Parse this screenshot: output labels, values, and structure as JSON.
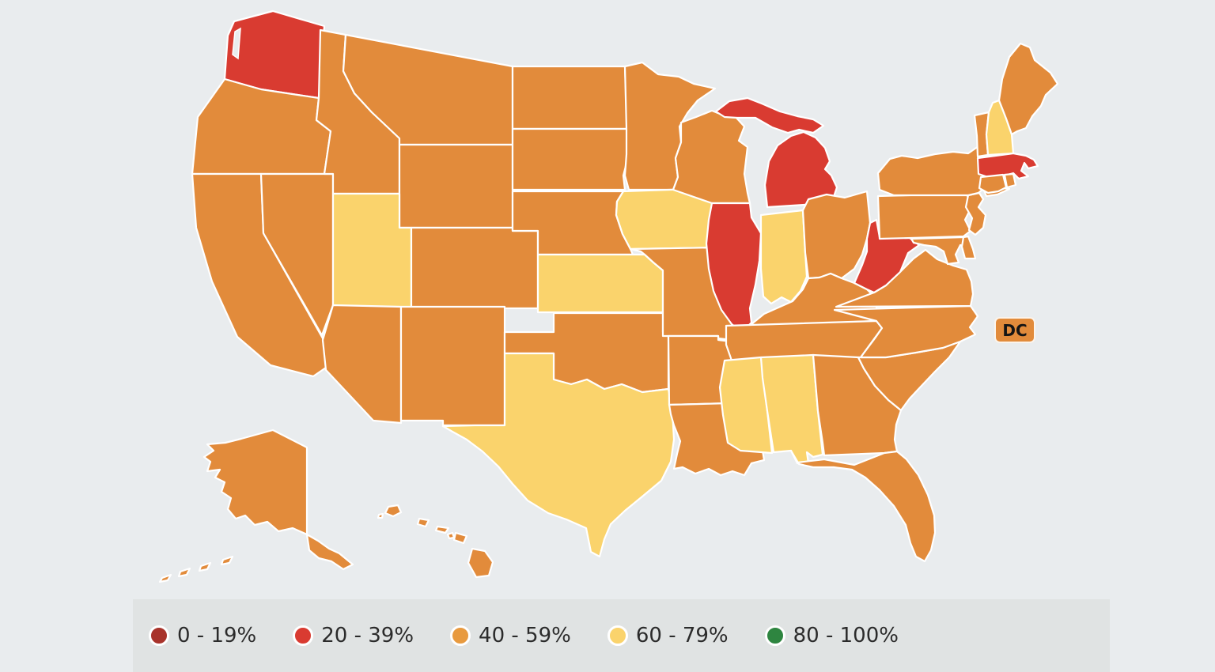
{
  "map": {
    "background_color": "#E9ECEE",
    "border_color": "#FFFFFF",
    "dc_label": "DC",
    "buckets": [
      {
        "label": "0 - 19%",
        "color": "#A8332B"
      },
      {
        "label": "20 - 39%",
        "color": "#D93B31"
      },
      {
        "label": "40 - 59%",
        "color": "#E28B3B"
      },
      {
        "label": "60 - 79%",
        "color": "#FAD36C"
      },
      {
        "label": "80 - 100%",
        "color": "#2E8540"
      }
    ],
    "states": [
      {
        "id": "WA",
        "name": "Washington",
        "bucket": "20 - 39%"
      },
      {
        "id": "OR",
        "name": "Oregon",
        "bucket": "40 - 59%"
      },
      {
        "id": "CA",
        "name": "California",
        "bucket": "40 - 59%"
      },
      {
        "id": "NV",
        "name": "Nevada",
        "bucket": "40 - 59%"
      },
      {
        "id": "ID",
        "name": "Idaho",
        "bucket": "40 - 59%"
      },
      {
        "id": "MT",
        "name": "Montana",
        "bucket": "40 - 59%"
      },
      {
        "id": "WY",
        "name": "Wyoming",
        "bucket": "40 - 59%"
      },
      {
        "id": "UT",
        "name": "Utah",
        "bucket": "60 - 79%"
      },
      {
        "id": "CO",
        "name": "Colorado",
        "bucket": "40 - 59%"
      },
      {
        "id": "AZ",
        "name": "Arizona",
        "bucket": "40 - 59%"
      },
      {
        "id": "NM",
        "name": "New Mexico",
        "bucket": "40 - 59%"
      },
      {
        "id": "ND",
        "name": "North Dakota",
        "bucket": "40 - 59%"
      },
      {
        "id": "SD",
        "name": "South Dakota",
        "bucket": "40 - 59%"
      },
      {
        "id": "NE",
        "name": "Nebraska",
        "bucket": "40 - 59%"
      },
      {
        "id": "KS",
        "name": "Kansas",
        "bucket": "60 - 79%"
      },
      {
        "id": "OK",
        "name": "Oklahoma",
        "bucket": "40 - 59%"
      },
      {
        "id": "TX",
        "name": "Texas",
        "bucket": "60 - 79%"
      },
      {
        "id": "MN",
        "name": "Minnesota",
        "bucket": "40 - 59%"
      },
      {
        "id": "IA",
        "name": "Iowa",
        "bucket": "60 - 79%"
      },
      {
        "id": "MO",
        "name": "Missouri",
        "bucket": "40 - 59%"
      },
      {
        "id": "AR",
        "name": "Arkansas",
        "bucket": "40 - 59%"
      },
      {
        "id": "LA",
        "name": "Louisiana",
        "bucket": "40 - 59%"
      },
      {
        "id": "WI",
        "name": "Wisconsin",
        "bucket": "40 - 59%"
      },
      {
        "id": "IL",
        "name": "Illinois",
        "bucket": "20 - 39%"
      },
      {
        "id": "MI",
        "name": "Michigan",
        "bucket": "20 - 39%"
      },
      {
        "id": "IN",
        "name": "Indiana",
        "bucket": "60 - 79%"
      },
      {
        "id": "OH",
        "name": "Ohio",
        "bucket": "40 - 59%"
      },
      {
        "id": "KY",
        "name": "Kentucky",
        "bucket": "40 - 59%"
      },
      {
        "id": "TN",
        "name": "Tennessee",
        "bucket": "40 - 59%"
      },
      {
        "id": "MS",
        "name": "Mississippi",
        "bucket": "60 - 79%"
      },
      {
        "id": "AL",
        "name": "Alabama",
        "bucket": "60 - 79%"
      },
      {
        "id": "GA",
        "name": "Georgia",
        "bucket": "40 - 59%"
      },
      {
        "id": "FL",
        "name": "Florida",
        "bucket": "40 - 59%"
      },
      {
        "id": "SC",
        "name": "South Carolina",
        "bucket": "40 - 59%"
      },
      {
        "id": "NC",
        "name": "North Carolina",
        "bucket": "40 - 59%"
      },
      {
        "id": "VA",
        "name": "Virginia",
        "bucket": "40 - 59%"
      },
      {
        "id": "WV",
        "name": "West Virginia",
        "bucket": "20 - 39%"
      },
      {
        "id": "MD",
        "name": "Maryland",
        "bucket": "40 - 59%"
      },
      {
        "id": "DE",
        "name": "Delaware",
        "bucket": "40 - 59%"
      },
      {
        "id": "PA",
        "name": "Pennsylvania",
        "bucket": "40 - 59%"
      },
      {
        "id": "NJ",
        "name": "New Jersey",
        "bucket": "40 - 59%"
      },
      {
        "id": "NY",
        "name": "New York",
        "bucket": "40 - 59%"
      },
      {
        "id": "VT",
        "name": "Vermont",
        "bucket": "40 - 59%"
      },
      {
        "id": "NH",
        "name": "New Hampshire",
        "bucket": "60 - 79%"
      },
      {
        "id": "ME",
        "name": "Maine",
        "bucket": "40 - 59%"
      },
      {
        "id": "MA",
        "name": "Massachusetts",
        "bucket": "20 - 39%"
      },
      {
        "id": "CT",
        "name": "Connecticut",
        "bucket": "40 - 59%"
      },
      {
        "id": "RI",
        "name": "Rhode Island",
        "bucket": "40 - 59%"
      },
      {
        "id": "AK",
        "name": "Alaska",
        "bucket": "40 - 59%"
      },
      {
        "id": "HI",
        "name": "Hawaii",
        "bucket": "40 - 59%"
      },
      {
        "id": "DC",
        "name": "District of Columbia",
        "bucket": "40 - 59%"
      }
    ]
  },
  "legend": {
    "items": [
      {
        "label": "0 - 19%",
        "color": "#A8332B"
      },
      {
        "label": "20 - 39%",
        "color": "#D93B31"
      },
      {
        "label": "40 - 59%",
        "color": "#E89A3F"
      },
      {
        "label": "60 - 79%",
        "color": "#FAD36C"
      },
      {
        "label": "80 - 100%",
        "color": "#2E8540"
      }
    ]
  }
}
